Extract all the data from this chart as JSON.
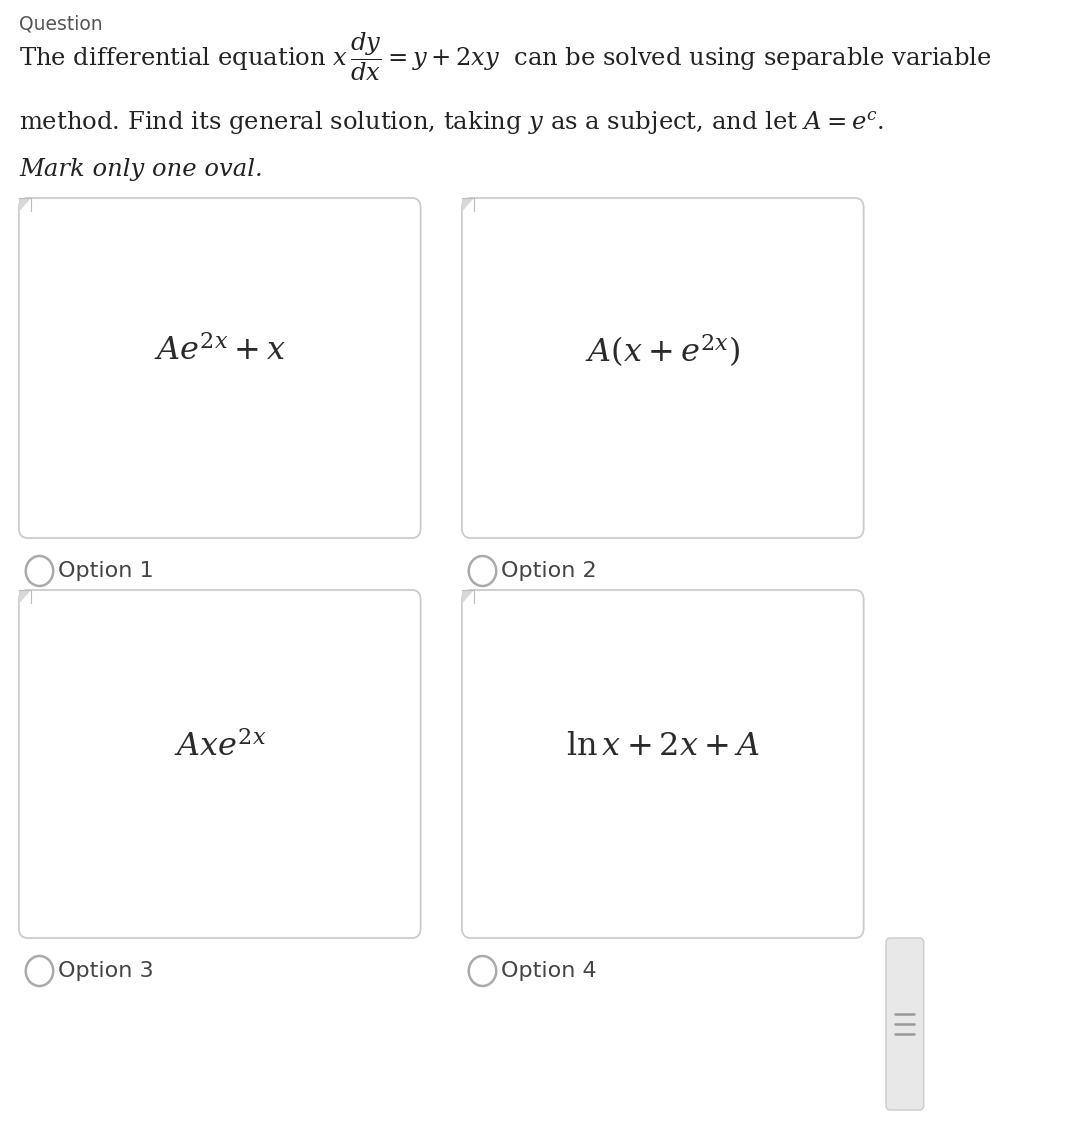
{
  "background_color": "#ffffff",
  "options": [
    {
      "label": "Option 1",
      "formula": "$Ae^{2x}+x$"
    },
    {
      "label": "Option 2",
      "formula": "$A\\left(x+e^{2x}\\right)$"
    },
    {
      "label": "Option 3",
      "formula": "$Axe^{2x}$"
    },
    {
      "label": "Option 4",
      "formula": "$\\ln x + 2x + A$"
    }
  ],
  "box_edge_color": "#cccccc",
  "box_bg": "#ffffff",
  "oval_color": "#aaaaaa",
  "text_color": "#222222",
  "option_label_color": "#444444",
  "scrollbar_bg": "#e8e8e8",
  "scrollbar_edge": "#cccccc",
  "scrollbar_line_color": "#999999",
  "header_color": "#555555",
  "q_line1": "The differential equation $x\\,\\dfrac{dy}{dx} = y + 2xy$  can be solved using separable variable",
  "q_line2": "method. Find its general solution, taking $y$ as a subject, and let $A = e^c$.",
  "q_line3": "Mark only one oval.",
  "header": "Question"
}
